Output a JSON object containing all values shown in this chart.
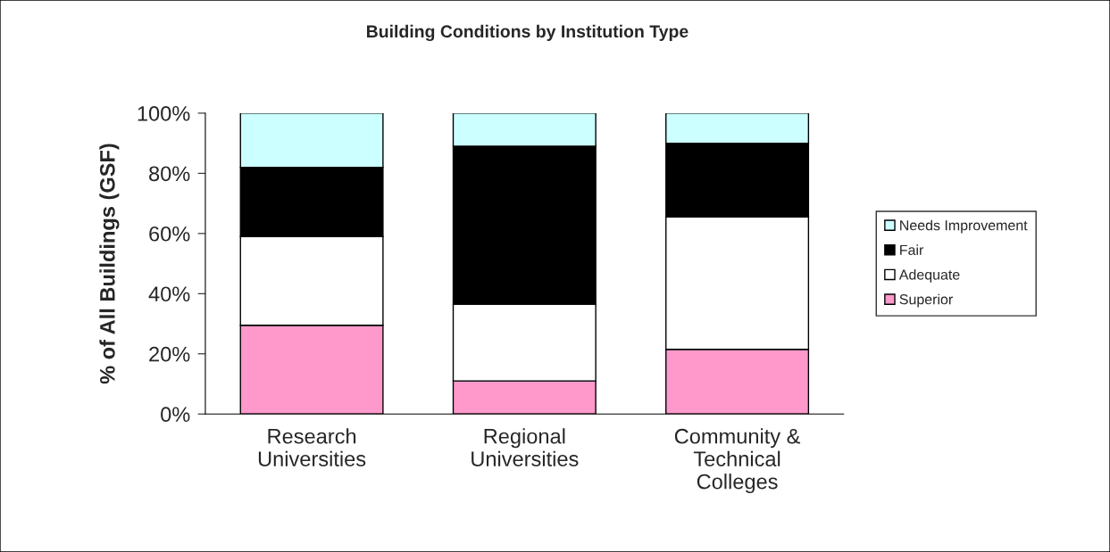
{
  "chart_data": {
    "type": "bar",
    "title": "Building Conditions by Institution Type",
    "ylabel": "% of All Buildings (GSF)",
    "categories": [
      "Research\nUniversities",
      "Regional\nUniversities",
      "Community &\nTechnical\nColleges"
    ],
    "stacked": true,
    "series": [
      {
        "name": "Superior",
        "color": "#ff99cc",
        "values": [
          29.5,
          11,
          21.5
        ]
      },
      {
        "name": "Adequate",
        "color": "#ffffff",
        "values": [
          29.5,
          25.5,
          44
        ]
      },
      {
        "name": "Fair",
        "color": "#000000",
        "values": [
          23,
          52.5,
          24.5
        ]
      },
      {
        "name": "Needs Improvement",
        "color": "#ccffff",
        "values": [
          18,
          11,
          10
        ]
      }
    ],
    "ylim": [
      0,
      100
    ],
    "yticks": [
      {
        "value": 0,
        "label": "0%"
      },
      {
        "value": 20,
        "label": "20%"
      },
      {
        "value": 40,
        "label": "40%"
      },
      {
        "value": 60,
        "label": "60%"
      },
      {
        "value": 80,
        "label": "80%"
      },
      {
        "value": 100,
        "label": "100%"
      }
    ],
    "grid": false,
    "legend": "right"
  }
}
